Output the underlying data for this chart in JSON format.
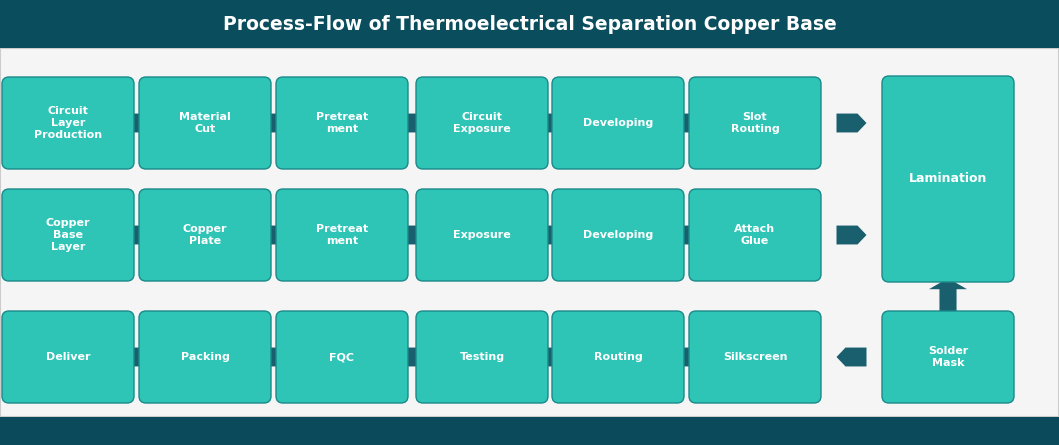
{
  "title": "Process-Flow of Thermoelectrical Separation Copper Base",
  "title_bg": "#0a4d5c",
  "title_color": "#ffffff",
  "box_fill": "#2ec4b6",
  "box_edge": "#1a8a8a",
  "arrow_color": "#1a5f6e",
  "text_color": "#ffffff",
  "bg_color": "#f5f5f5",
  "footer_color": "#0a4a5a",
  "border_color": "#cccccc",
  "row1": [
    "Circuit\nLayer\nProduction",
    "Material\nCut",
    "Pretreat\nment",
    "Circuit\nExposure",
    "Developing",
    "Slot\nRouting"
  ],
  "row2": [
    "Copper\nBase\nLayer",
    "Copper\nPlate",
    "Pretreat\nment",
    "Exposure",
    "Developing",
    "Attach\nGlue"
  ],
  "row3": [
    "Solder\nMask",
    "Silkscreen",
    "Routing",
    "Testing",
    "FQC",
    "Packing",
    "Deliver"
  ],
  "lamination_label": "Lamination"
}
